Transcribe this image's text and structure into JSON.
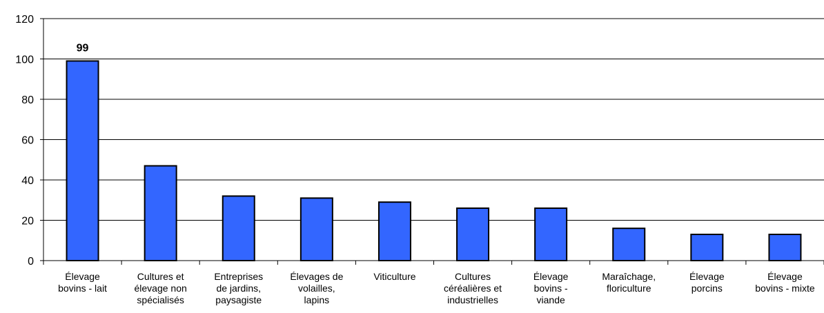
{
  "chart_data": {
    "type": "bar",
    "categories": [
      [
        "Élevage",
        "bovins - lait"
      ],
      [
        "Cultures et",
        "élevage non",
        "spécialisés"
      ],
      [
        "Entreprises",
        "de jardins,",
        "paysagiste"
      ],
      [
        "Élevages de",
        "volailles,",
        "lapins"
      ],
      [
        "Viticulture"
      ],
      [
        "Cultures",
        "céréalières et",
        "industrielles"
      ],
      [
        "Élevage",
        "bovins -",
        "viande"
      ],
      [
        "Maraîchage,",
        "floriculture"
      ],
      [
        "Élevage",
        "porcins"
      ],
      [
        "Élevage",
        "bovins - mixte"
      ]
    ],
    "values": [
      99,
      47,
      32,
      31,
      29,
      26,
      26,
      16,
      13,
      13
    ],
    "data_labels": [
      "99",
      "",
      "",
      "",
      "",
      "",
      "",
      "",
      "",
      ""
    ],
    "ylim": [
      0,
      120
    ],
    "yticks": [
      0,
      20,
      40,
      60,
      80,
      100,
      120
    ],
    "grid": true,
    "bar_color": "#3366FF",
    "edge_color": "#000000",
    "title": "",
    "xlabel": "",
    "ylabel": ""
  }
}
